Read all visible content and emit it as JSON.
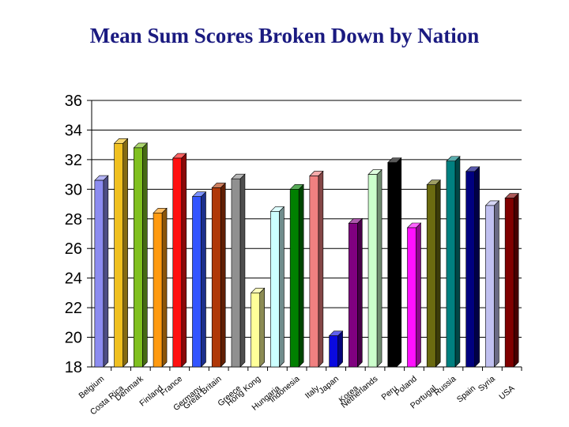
{
  "chart_data": {
    "type": "bar",
    "title": "Mean Sum Scores Broken Down by Nation",
    "xlabel": "",
    "ylabel": "",
    "ylim": [
      18,
      36
    ],
    "yticks": [
      18,
      20,
      22,
      24,
      26,
      28,
      30,
      32,
      34,
      36
    ],
    "grid": true,
    "style": "3d",
    "categories": [
      "Belgium",
      "Costa Rica",
      "Denmark",
      "Finland",
      "France",
      "Germany",
      "Great Britain",
      "Greece",
      "Hong Kong",
      "Hungaria",
      "Indonesia",
      "Italy",
      "Japan",
      "Korea",
      "Netherlands",
      "Peru",
      "Poland",
      "Portugal",
      "Russia",
      "Spain",
      "Syria",
      "USA"
    ],
    "values": [
      30.6,
      33.1,
      32.8,
      28.4,
      32.1,
      29.5,
      30.1,
      30.7,
      23.0,
      28.5,
      30.0,
      30.9,
      20.1,
      27.7,
      31.0,
      31.8,
      27.4,
      30.3,
      31.9,
      31.2,
      28.9,
      29.4
    ],
    "colors": [
      "#8c8cf0",
      "#f0c020",
      "#80c020",
      "#ff9a10",
      "#ff1010",
      "#3355ff",
      "#b03808",
      "#909090",
      "#ffff99",
      "#ccffff",
      "#008000",
      "#f08080",
      "#0a0ae0",
      "#800080",
      "#ccffcc",
      "#000000",
      "#ff10ff",
      "#6b6b10",
      "#008080",
      "#000080",
      "#c0c0f0",
      "#800000"
    ]
  }
}
